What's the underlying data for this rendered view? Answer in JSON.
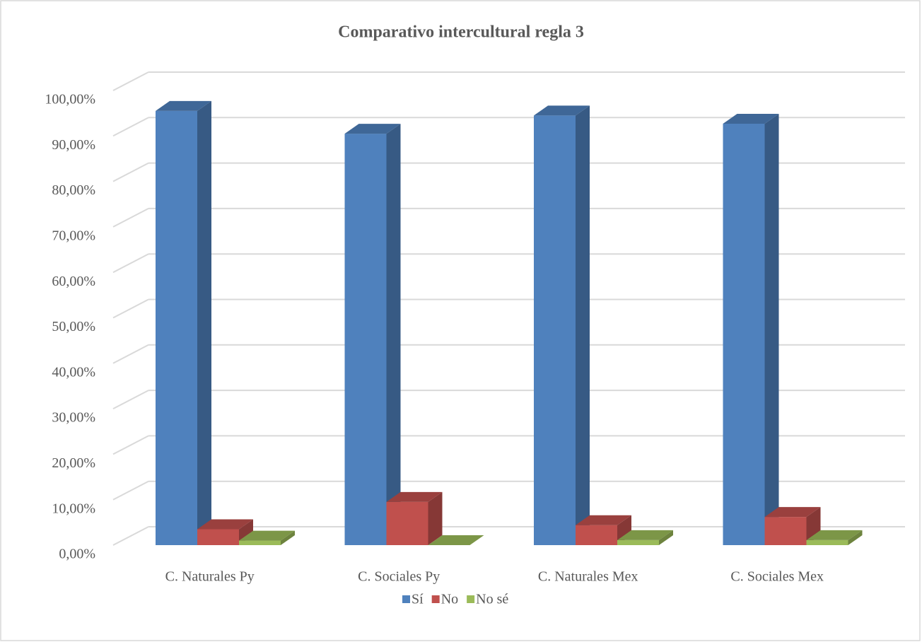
{
  "chart_data": {
    "type": "bar3d",
    "title": "Comparativo intercultural regla 3",
    "categories": [
      "C. Naturales Py",
      "C. Sociales Py",
      "C. Naturales Mex",
      "C. Sociales Mex"
    ],
    "series": [
      {
        "name": "Sí",
        "color": "#4f81bd",
        "values": [
          95.5,
          90.5,
          94.5,
          92.7
        ]
      },
      {
        "name": "No",
        "color": "#c0504d",
        "values": [
          3.5,
          9.5,
          4.4,
          6.2
        ]
      },
      {
        "name": "No sé",
        "color": "#9bbb59",
        "values": [
          1.0,
          0.0,
          1.1,
          1.1
        ]
      }
    ],
    "ylim": [
      0,
      100
    ],
    "yticks": [
      {
        "value": 0,
        "label": "0,00%"
      },
      {
        "value": 10,
        "label": "10,00%"
      },
      {
        "value": 20,
        "label": "20,00%"
      },
      {
        "value": 30,
        "label": "30,00%"
      },
      {
        "value": 40,
        "label": "40,00%"
      },
      {
        "value": 50,
        "label": "50,00%"
      },
      {
        "value": 60,
        "label": "60,00%"
      },
      {
        "value": 70,
        "label": "70,00%"
      },
      {
        "value": 80,
        "label": "80,00%"
      },
      {
        "value": 90,
        "label": "90,00%"
      },
      {
        "value": 100,
        "label": "100,00%"
      }
    ],
    "grid": true,
    "legend": "bottom"
  }
}
